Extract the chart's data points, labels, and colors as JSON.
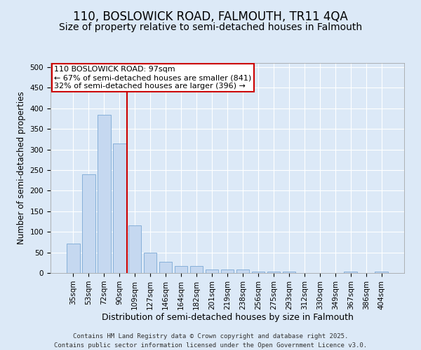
{
  "title_line1": "110, BOSLOWICK ROAD, FALMOUTH, TR11 4QA",
  "title_line2": "Size of property relative to semi-detached houses in Falmouth",
  "xlabel": "Distribution of semi-detached houses by size in Falmouth",
  "ylabel": "Number of semi-detached properties",
  "categories": [
    "35sqm",
    "53sqm",
    "72sqm",
    "90sqm",
    "109sqm",
    "127sqm",
    "146sqm",
    "164sqm",
    "182sqm",
    "201sqm",
    "219sqm",
    "238sqm",
    "256sqm",
    "275sqm",
    "293sqm",
    "312sqm",
    "330sqm",
    "349sqm",
    "367sqm",
    "386sqm",
    "404sqm"
  ],
  "values": [
    72,
    240,
    385,
    315,
    115,
    50,
    28,
    17,
    17,
    8,
    8,
    8,
    4,
    4,
    4,
    0,
    0,
    0,
    4,
    0,
    4
  ],
  "bar_color": "#c5d8f0",
  "bar_edge_color": "#7ba8d4",
  "vline_color": "#cc0000",
  "vline_x": 3.5,
  "annotation_line1": "110 BOSLOWICK ROAD: 97sqm",
  "annotation_line2": "← 67% of semi-detached houses are smaller (841)",
  "annotation_line3": "32% of semi-detached houses are larger (396) →",
  "annotation_box_color": "#ffffff",
  "annotation_box_edge_color": "#cc0000",
  "ylim": [
    0,
    510
  ],
  "yticks": [
    0,
    50,
    100,
    150,
    200,
    250,
    300,
    350,
    400,
    450,
    500
  ],
  "background_color": "#dce9f7",
  "plot_bg_color": "#dce9f7",
  "footer": "Contains HM Land Registry data © Crown copyright and database right 2025.\nContains public sector information licensed under the Open Government Licence v3.0.",
  "title_fontsize": 12,
  "subtitle_fontsize": 10,
  "xlabel_fontsize": 9,
  "ylabel_fontsize": 8.5,
  "tick_fontsize": 7.5,
  "annotation_fontsize": 8,
  "footer_fontsize": 6.5
}
